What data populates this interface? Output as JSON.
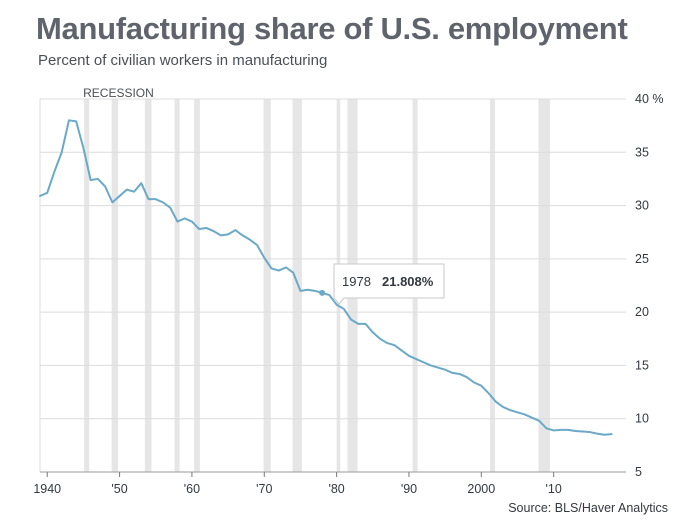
{
  "title": "Manufacturing share of U.S. employment",
  "subtitle": "Percent of civilian workers in manufacturing",
  "source": "Source: BLS/Haver Analytics",
  "chart_data": {
    "type": "line",
    "title": "Manufacturing share of U.S. employment",
    "subtitle": "Percent of civilian workers in manufacturing",
    "xlabel": "",
    "ylabel": "",
    "xlim": [
      1939,
      2020
    ],
    "ylim": [
      5,
      40
    ],
    "y_unit": "%",
    "grid": "horizontal",
    "line_color": "#6aa9c8",
    "recession_color": "#e6e6e6",
    "x_ticks": [
      {
        "value": 1940,
        "label": "1940"
      },
      {
        "value": 1950,
        "label": "'50"
      },
      {
        "value": 1960,
        "label": "'60"
      },
      {
        "value": 1970,
        "label": "'70"
      },
      {
        "value": 1980,
        "label": "'80"
      },
      {
        "value": 1990,
        "label": "'90"
      },
      {
        "value": 2000,
        "label": "2000"
      },
      {
        "value": 2010,
        "label": "'10"
      }
    ],
    "y_ticks": [
      {
        "value": 40,
        "label": "40 %"
      },
      {
        "value": 35,
        "label": "35"
      },
      {
        "value": 30,
        "label": "30"
      },
      {
        "value": 25,
        "label": "25"
      },
      {
        "value": 20,
        "label": "20"
      },
      {
        "value": 15,
        "label": "15"
      },
      {
        "value": 10,
        "label": "10"
      },
      {
        "value": 5,
        "label": "5"
      }
    ],
    "recession_label": "RECESSION",
    "recessions": [
      [
        1945.1,
        1945.8
      ],
      [
        1948.9,
        1949.8
      ],
      [
        1953.5,
        1954.4
      ],
      [
        1957.6,
        1958.3
      ],
      [
        1960.3,
        1961.1
      ],
      [
        1969.9,
        1970.9
      ],
      [
        1973.9,
        1975.2
      ],
      [
        1980.0,
        1980.5
      ],
      [
        1981.5,
        1982.9
      ],
      [
        1990.5,
        1991.2
      ],
      [
        2001.2,
        2001.9
      ],
      [
        2007.9,
        2009.5
      ]
    ],
    "series": [
      {
        "x": [
          1939,
          1940,
          1941,
          1942,
          1943,
          1944,
          1945,
          1946,
          1947,
          1948,
          1949,
          1950,
          1951,
          1952,
          1953,
          1954,
          1955,
          1956,
          1957,
          1958,
          1959,
          1960,
          1961,
          1962,
          1963,
          1964,
          1965,
          1966,
          1967,
          1968,
          1969,
          1970,
          1971,
          1972,
          1973,
          1974,
          1975,
          1976,
          1977,
          1978,
          1979,
          1980,
          1981,
          1982,
          1983,
          1984,
          1985,
          1986,
          1987,
          1988,
          1989,
          1990,
          1991,
          1992,
          1993,
          1994,
          1995,
          1996,
          1997,
          1998,
          1999,
          2000,
          2001,
          2002,
          2003,
          2004,
          2005,
          2006,
          2007,
          2008,
          2009,
          2010,
          2011,
          2012,
          2013,
          2014,
          2015,
          2016,
          2017,
          2018
        ],
        "values": [
          30.9,
          31.2,
          33.2,
          35.0,
          38.0,
          37.9,
          35.4,
          32.4,
          32.5,
          31.8,
          30.3,
          30.9,
          31.5,
          31.3,
          32.1,
          30.6,
          30.6,
          30.3,
          29.8,
          28.5,
          28.8,
          28.5,
          27.8,
          27.9,
          27.6,
          27.2,
          27.3,
          27.7,
          27.2,
          26.8,
          26.3,
          25.1,
          24.1,
          23.9,
          24.2,
          23.7,
          22.0,
          22.1,
          22.0,
          21.808,
          21.6,
          20.7,
          20.3,
          19.3,
          18.9,
          18.9,
          18.1,
          17.5,
          17.1,
          16.9,
          16.4,
          15.9,
          15.6,
          15.3,
          15.0,
          14.8,
          14.6,
          14.3,
          14.2,
          13.9,
          13.4,
          13.1,
          12.4,
          11.6,
          11.1,
          10.8,
          10.6,
          10.4,
          10.1,
          9.8,
          9.1,
          8.9,
          8.95,
          8.95,
          8.85,
          8.8,
          8.75,
          8.6,
          8.5,
          8.55
        ]
      }
    ],
    "tooltip": {
      "year": "1978",
      "value": "21.808%",
      "x": 1978,
      "y": 21.808
    }
  }
}
